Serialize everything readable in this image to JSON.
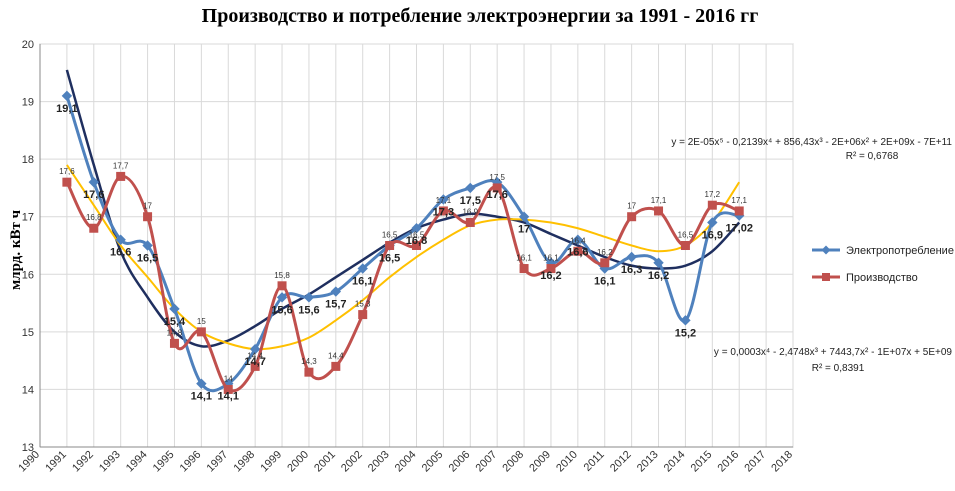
{
  "chart_data": {
    "type": "line",
    "title": "Производство и потребление электроэнергии за 1991 - 2016 гг",
    "ylabel": "млрд. кВт ч",
    "xlabel": "",
    "xlim": [
      1990,
      2018
    ],
    "ylim": [
      13,
      20
    ],
    "x_ticks": [
      "1990",
      "1991",
      "1992",
      "1993",
      "1994",
      "1995",
      "1996",
      "1997",
      "1998",
      "1999",
      "2000",
      "2001",
      "2002",
      "2003",
      "2004",
      "2005",
      "2006",
      "2007",
      "2008",
      "2009",
      "2010",
      "2011",
      "2012",
      "2013",
      "2014",
      "2015",
      "2016",
      "2017",
      "2018"
    ],
    "y_ticks": [
      "13",
      "14",
      "15",
      "16",
      "17",
      "18",
      "19",
      "20"
    ],
    "grid": true,
    "legend": "right",
    "series": [
      {
        "name": "Электропотребление",
        "color": "#4f81bd",
        "marker": "diamond",
        "x": [
          1991,
          1992,
          1993,
          1994,
          1995,
          1996,
          1997,
          1998,
          1999,
          2000,
          2001,
          2002,
          2003,
          2004,
          2005,
          2006,
          2007,
          2008,
          2009,
          2010,
          2011,
          2012,
          2013,
          2014,
          2015,
          2016
        ],
        "values": [
          19.1,
          17.6,
          16.6,
          16.5,
          15.4,
          14.1,
          14.1,
          14.7,
          15.6,
          15.6,
          15.7,
          16.1,
          16.5,
          16.8,
          17.3,
          17.5,
          17.6,
          17,
          16.2,
          16.6,
          16.1,
          16.3,
          16.2,
          15.2,
          16.9,
          17.02
        ],
        "labels": [
          "19,1",
          "17,6",
          "16,6",
          "16,5",
          "15,4",
          "14,1",
          "14,1",
          "14,7",
          "15,6",
          "15,6",
          "15,7",
          "16,1",
          "16,5",
          "16,8",
          "17,3",
          "17,5",
          "17,6",
          "17",
          "16,2",
          "16,6",
          "16,1",
          "16,3",
          "16,2",
          "15,2",
          "16,9",
          "17,02"
        ]
      },
      {
        "name": "Производство",
        "color": "#c0504d",
        "marker": "square",
        "x": [
          1991,
          1992,
          1993,
          1994,
          1995,
          1996,
          1997,
          1998,
          1999,
          2000,
          2001,
          2002,
          2003,
          2004,
          2005,
          2006,
          2007,
          2008,
          2009,
          2010,
          2011,
          2012,
          2013,
          2014,
          2015,
          2016
        ],
        "values": [
          17.6,
          16.8,
          17.7,
          17,
          14.8,
          15,
          14,
          14.4,
          15.8,
          14.3,
          14.4,
          15.3,
          16.5,
          16.5,
          17.1,
          16.9,
          17.5,
          16.1,
          16.1,
          16.4,
          16.2,
          17,
          17.1,
          16.5,
          17.2,
          17.1
        ],
        "labels": [
          "17,6",
          "16,8",
          "17,7",
          "17",
          "14,8",
          "15",
          "14",
          "14,4",
          "15,8",
          "14,3",
          "14,4",
          "15,3",
          "16,5",
          "16,5",
          "17,1",
          "16,9",
          "17,5",
          "16,1",
          "16,1",
          "16,4",
          "16,2",
          "17",
          "17,1",
          "16,5",
          "17,2",
          "17,1"
        ]
      }
    ],
    "trendlines": [
      {
        "kind": "polynomial-5",
        "color": "#1f2f5f",
        "equation": "y = 2E-05x⁵ - 0,2139x⁴ + 856,43x³ - 2E+06x² + 2E+09x - 7E+11",
        "r2": "R² = 0,6768",
        "x": [
          1991,
          1992,
          1993,
          1994,
          1995,
          1996,
          1997,
          1998,
          1999,
          2000,
          2001,
          2002,
          2003,
          2004,
          2005,
          2006,
          2007,
          2008,
          2009,
          2010,
          2011,
          2012,
          2013,
          2014,
          2015,
          2016
        ],
        "values": [
          19.55,
          17.9,
          16.4,
          15.6,
          15.0,
          14.75,
          14.85,
          15.1,
          15.4,
          15.65,
          15.95,
          16.25,
          16.55,
          16.8,
          16.95,
          17.05,
          17.0,
          16.9,
          16.7,
          16.5,
          16.3,
          16.15,
          16.1,
          16.15,
          16.4,
          16.9
        ]
      },
      {
        "kind": "polynomial-4",
        "color": "#ffc000",
        "equation": "y = 0,0003x⁴ - 2,4748x³ + 7443,7x² - 1E+07x + 5E+09",
        "r2": "R² = 0,8391",
        "x": [
          1991,
          1992,
          1993,
          1994,
          1995,
          1996,
          1997,
          1998,
          1999,
          2000,
          2001,
          2002,
          2003,
          2004,
          2005,
          2006,
          2007,
          2008,
          2009,
          2010,
          2011,
          2012,
          2013,
          2014,
          2015,
          2016
        ],
        "values": [
          17.9,
          17.2,
          16.5,
          15.95,
          15.4,
          15.0,
          14.8,
          14.7,
          14.75,
          14.9,
          15.2,
          15.55,
          15.95,
          16.3,
          16.6,
          16.85,
          16.95,
          16.95,
          16.9,
          16.8,
          16.65,
          16.5,
          16.4,
          16.5,
          16.9,
          17.6
        ]
      }
    ]
  }
}
